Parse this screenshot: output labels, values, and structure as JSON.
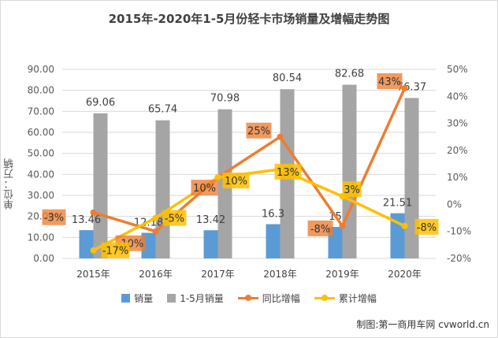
{
  "title": "2015年-2020年1-5月份轻卡市场销量及增幅走势图",
  "ylabel": "单位：万辆",
  "credit": "制图:第一商用车网 cvworld.cn",
  "legend": [
    {
      "label": "销量",
      "kind": "box",
      "color": "#5b9bd5"
    },
    {
      "label": "1-5月销量",
      "kind": "box",
      "color": "#a5a5a5"
    },
    {
      "label": "同比增幅",
      "kind": "line",
      "color": "#ed7d31"
    },
    {
      "label": "累计增幅",
      "kind": "line",
      "color": "#ffc000"
    }
  ],
  "chart_data": {
    "type": "bar",
    "categories": [
      "2015年",
      "2016年",
      "2017年",
      "2018年",
      "2019年",
      "2020年"
    ],
    "ylim": [
      0,
      90
    ],
    "y_ticks": [
      "0.00",
      "10.00",
      "20.00",
      "30.00",
      "40.00",
      "50.00",
      "60.00",
      "70.00",
      "80.00",
      "90.00"
    ],
    "y2lim": [
      -20,
      50
    ],
    "y2_ticks": [
      "-20%",
      "-10%",
      "0%",
      "10%",
      "20%",
      "30%",
      "40%",
      "50%"
    ],
    "grid": true,
    "legend_position": "bottom",
    "series": [
      {
        "name": "销量",
        "kind": "bar",
        "axis": "left",
        "color": "#5b9bd5",
        "values": [
          13.46,
          12.18,
          13.42,
          16.3,
          15,
          21.51
        ],
        "labels": [
          "13.46",
          "12.18",
          "13.42",
          "16.3",
          "15",
          "21.51"
        ]
      },
      {
        "name": "1-5月销量",
        "kind": "bar",
        "axis": "left",
        "color": "#a5a5a5",
        "values": [
          69.06,
          65.74,
          70.98,
          80.54,
          82.68,
          76.37
        ],
        "labels": [
          "69.06",
          "65.74",
          "70.98",
          "80.54",
          "82.68",
          "76.37"
        ]
      },
      {
        "name": "同比增幅",
        "kind": "line",
        "axis": "right",
        "color": "#ed7d31",
        "values": [
          -3,
          -10,
          10,
          25,
          -8,
          43
        ],
        "labels": [
          "-3%",
          "-10%",
          "10%",
          "25%",
          "-8%",
          "43%"
        ]
      },
      {
        "name": "累计增幅",
        "kind": "line",
        "axis": "right",
        "color": "#ffc000",
        "values": [
          -17,
          -5,
          10,
          13,
          3,
          -8
        ],
        "labels": [
          "-17%",
          "-5%",
          "10%",
          "13%",
          "3%",
          "-8%"
        ]
      }
    ]
  }
}
